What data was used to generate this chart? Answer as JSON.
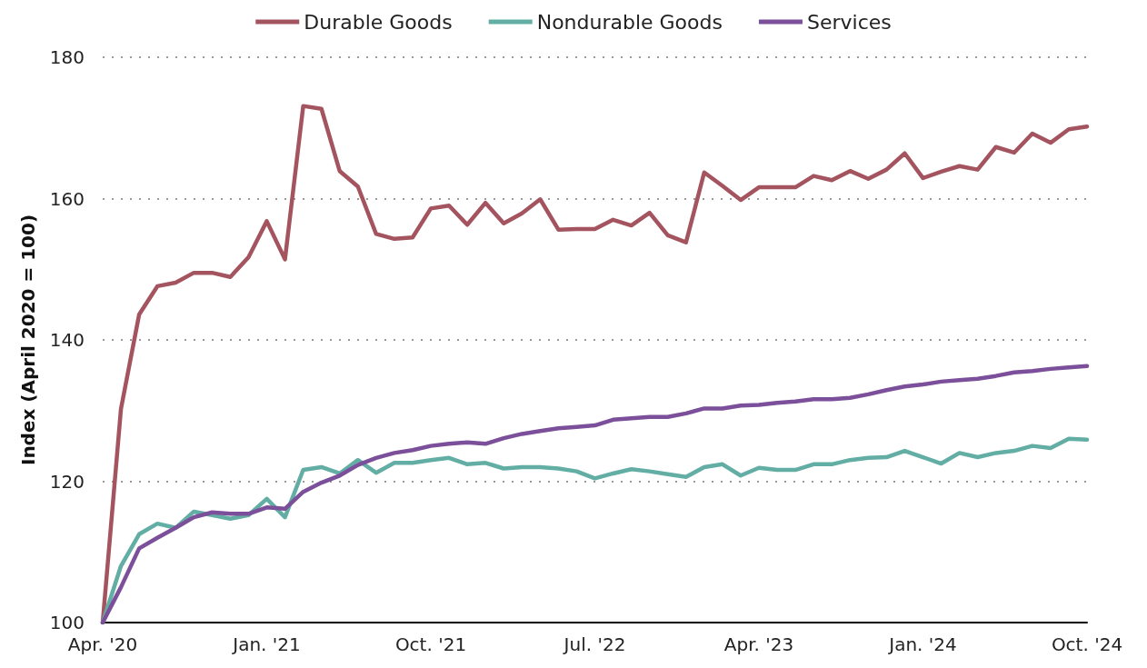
{
  "chart_data": {
    "type": "line",
    "ylabel": "Index (April 2020 = 100)",
    "categories": [
      "Apr. '20",
      null,
      null,
      null,
      null,
      null,
      null,
      null,
      null,
      "Jan. '21",
      null,
      null,
      null,
      null,
      null,
      null,
      null,
      null,
      "Oct. '21",
      null,
      null,
      null,
      null,
      null,
      null,
      null,
      null,
      "Jul. '22",
      null,
      null,
      null,
      null,
      null,
      null,
      null,
      null,
      "Apr. '23",
      null,
      null,
      null,
      null,
      null,
      null,
      null,
      null,
      "Jan. '24",
      null,
      null,
      null,
      null,
      null,
      null,
      null,
      null,
      "Oct. '24"
    ],
    "series": [
      {
        "name": "Durable Goods",
        "color": "#a4545f",
        "values": [
          100,
          130.2,
          143.6,
          147.6,
          148.1,
          149.5,
          149.5,
          148.9,
          151.7,
          156.8,
          151.4,
          173.1,
          172.7,
          163.9,
          161.7,
          155.0,
          154.3,
          154.5,
          158.6,
          159.0,
          156.3,
          159.4,
          156.5,
          157.9,
          159.9,
          155.6,
          155.7,
          155.7,
          157.0,
          156.2,
          158.0,
          154.8,
          153.8,
          163.7,
          161.8,
          159.8,
          161.6,
          161.6,
          161.6,
          163.2,
          162.6,
          163.9,
          162.8,
          164.1,
          166.4,
          162.9,
          163.8,
          164.6,
          164.1,
          167.3,
          166.5,
          169.2,
          167.9,
          169.8,
          170.2
        ]
      },
      {
        "name": "Nondurable Goods",
        "color": "#62aea5",
        "values": [
          100,
          108.0,
          112.5,
          114.0,
          113.4,
          115.7,
          115.2,
          114.7,
          115.2,
          117.5,
          114.9,
          121.6,
          122.0,
          121.1,
          123.0,
          121.2,
          122.6,
          122.6,
          123.0,
          123.3,
          122.4,
          122.6,
          121.8,
          122.0,
          122.0,
          121.8,
          121.4,
          120.4,
          121.1,
          121.7,
          121.4,
          121.0,
          120.6,
          122.0,
          122.4,
          120.8,
          121.9,
          121.6,
          121.6,
          122.4,
          122.4,
          123.0,
          123.3,
          123.4,
          124.3,
          123.4,
          122.5,
          124.0,
          123.4,
          124.0,
          124.3,
          125.0,
          124.7,
          126.0,
          125.9
        ]
      },
      {
        "name": "Services",
        "color": "#7b4f9a",
        "values": [
          100,
          105.0,
          110.5,
          112.0,
          113.4,
          114.9,
          115.6,
          115.4,
          115.4,
          116.3,
          116.1,
          118.5,
          119.8,
          120.8,
          122.3,
          123.3,
          124.0,
          124.4,
          125.0,
          125.3,
          125.5,
          125.3,
          126.1,
          126.7,
          127.1,
          127.5,
          127.7,
          127.9,
          128.7,
          128.9,
          129.1,
          129.1,
          129.6,
          130.3,
          130.3,
          130.7,
          130.8,
          131.1,
          131.3,
          131.6,
          131.6,
          131.8,
          132.3,
          132.9,
          133.4,
          133.7,
          134.1,
          134.3,
          134.5,
          134.9,
          135.4,
          135.6,
          135.9,
          136.1,
          136.3
        ]
      }
    ],
    "ylim": [
      100,
      180
    ],
    "yticks": [
      100,
      120,
      140,
      160,
      180
    ],
    "grid": "y",
    "legend": "top",
    "marker": "none",
    "line_style": "solid"
  }
}
